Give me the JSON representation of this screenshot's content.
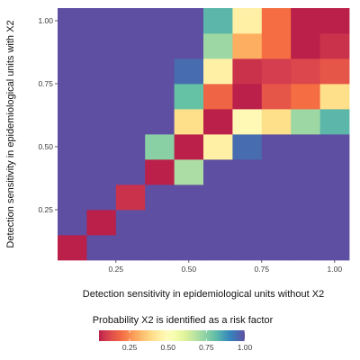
{
  "chart_data": {
    "type": "heatmap",
    "title": "",
    "xlabel": "Detection sensitivity in epidemiological units without X2",
    "ylabel": "Detection sensitivity in epidemiological units with X2",
    "x_ticks": [
      "0.25",
      "0.50",
      "0.75",
      "1.00"
    ],
    "x_tick_values": [
      0.25,
      0.5,
      0.75,
      1.0
    ],
    "y_ticks": [
      "0.25",
      "0.50",
      "0.75",
      "1.00"
    ],
    "y_tick_values": [
      0.25,
      0.5,
      0.75,
      1.0
    ],
    "xlim": [
      0.05,
      1.05
    ],
    "ylim": [
      0.05,
      1.05
    ],
    "x": [
      0.1,
      0.2,
      0.3,
      0.4,
      0.5,
      0.6,
      0.7,
      0.8,
      0.9,
      1.0
    ],
    "y": [
      0.1,
      0.2,
      0.3,
      0.4,
      0.5,
      0.6,
      0.7,
      0.8,
      0.9,
      1.0
    ],
    "grid": true,
    "panel_background": "#ebebeb",
    "grid_color": "#ffffff",
    "values": [
      [
        0.05,
        1,
        1,
        1,
        1,
        1,
        1,
        1,
        1,
        1
      ],
      [
        1,
        0.05,
        1,
        1,
        1,
        1,
        1,
        1,
        1,
        1
      ],
      [
        1,
        1,
        0.08,
        1,
        1,
        1,
        1,
        1,
        1,
        1
      ],
      [
        1,
        1,
        1,
        0.05,
        0.7,
        1,
        1,
        1,
        1,
        1
      ],
      [
        1,
        1,
        1,
        0.75,
        0.05,
        0.45,
        0.95,
        1,
        1,
        1
      ],
      [
        1,
        1,
        1,
        1,
        0.4,
        0.05,
        0.48,
        0.4,
        0.72,
        0.82
      ],
      [
        1,
        1,
        1,
        1,
        0.8,
        0.18,
        0.05,
        0.15,
        0.2,
        0.4
      ],
      [
        1,
        1,
        1,
        1,
        0.95,
        0.45,
        0.08,
        0.1,
        0.12,
        0.15
      ],
      [
        1,
        1,
        1,
        1,
        1,
        0.72,
        0.3,
        0.2,
        0.05,
        0.08
      ],
      [
        1,
        1,
        1,
        1,
        1,
        0.82,
        0.45,
        0.2,
        0.05,
        0.05
      ]
    ],
    "colorscale": {
      "stops": [
        {
          "v": 0.0,
          "color": "#9e0142"
        },
        {
          "v": 0.1,
          "color": "#d53e4f"
        },
        {
          "v": 0.2,
          "color": "#f46d43"
        },
        {
          "v": 0.3,
          "color": "#fdae61"
        },
        {
          "v": 0.4,
          "color": "#fee08b"
        },
        {
          "v": 0.5,
          "color": "#ffffbf"
        },
        {
          "v": 0.6,
          "color": "#e6f598"
        },
        {
          "v": 0.7,
          "color": "#abdda4"
        },
        {
          "v": 0.8,
          "color": "#66c2a5"
        },
        {
          "v": 0.9,
          "color": "#3288bd"
        },
        {
          "v": 1.0,
          "color": "#5e4fa2"
        }
      ]
    },
    "legend": {
      "title": "Probability X2 is identified as a risk factor",
      "ticks": [
        "0.25",
        "0.50",
        "0.75",
        "1.00"
      ],
      "tick_values": [
        0.25,
        0.5,
        0.75,
        1.0
      ],
      "range": [
        0.05,
        1.0
      ],
      "position": "bottom"
    }
  }
}
